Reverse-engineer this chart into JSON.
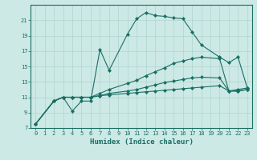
{
  "xlabel": "Humidex (Indice chaleur)",
  "bg_color": "#cce9e5",
  "line_color": "#1a6e64",
  "grid_color": "#aed4cf",
  "xlim": [
    -0.5,
    23.5
  ],
  "ylim": [
    7,
    23
  ],
  "xticks": [
    0,
    1,
    2,
    3,
    4,
    5,
    6,
    7,
    8,
    9,
    10,
    11,
    12,
    13,
    14,
    15,
    16,
    17,
    18,
    19,
    20,
    21,
    22,
    23
  ],
  "yticks": [
    7,
    9,
    11,
    13,
    15,
    17,
    19,
    21
  ],
  "series": [
    {
      "x": [
        0,
        2,
        3,
        4,
        5,
        6,
        7,
        8,
        10,
        11,
        12,
        13,
        14,
        15,
        16,
        17,
        18,
        20,
        21,
        22,
        23
      ],
      "y": [
        7.5,
        10.5,
        11.0,
        9.2,
        10.5,
        10.5,
        17.2,
        14.5,
        19.2,
        21.2,
        22.0,
        21.6,
        21.5,
        21.3,
        21.2,
        19.5,
        17.8,
        16.2,
        15.5,
        16.2,
        12.2
      ]
    },
    {
      "x": [
        0,
        2,
        3,
        4,
        5,
        6,
        7,
        8,
        10,
        11,
        12,
        13,
        14,
        15,
        16,
        17,
        18,
        20,
        21,
        22,
        23
      ],
      "y": [
        7.5,
        10.5,
        11.0,
        11.0,
        11.0,
        11.0,
        11.5,
        12.0,
        12.8,
        13.2,
        13.8,
        14.3,
        14.8,
        15.4,
        15.7,
        16.0,
        16.2,
        16.0,
        11.8,
        12.0,
        12.2
      ]
    },
    {
      "x": [
        0,
        2,
        3,
        4,
        5,
        6,
        7,
        8,
        10,
        11,
        12,
        13,
        14,
        15,
        16,
        17,
        18,
        20,
        21,
        22,
        23
      ],
      "y": [
        7.5,
        10.5,
        11.0,
        11.0,
        11.0,
        11.0,
        11.2,
        11.5,
        11.8,
        12.0,
        12.3,
        12.6,
        12.9,
        13.1,
        13.3,
        13.5,
        13.6,
        13.5,
        11.8,
        11.8,
        12.0
      ]
    },
    {
      "x": [
        0,
        2,
        3,
        4,
        5,
        6,
        7,
        8,
        10,
        11,
        12,
        13,
        14,
        15,
        16,
        17,
        18,
        20,
        21,
        22,
        23
      ],
      "y": [
        7.5,
        10.5,
        11.0,
        11.0,
        11.0,
        11.0,
        11.2,
        11.3,
        11.5,
        11.6,
        11.7,
        11.8,
        11.9,
        12.0,
        12.1,
        12.2,
        12.3,
        12.5,
        11.8,
        11.8,
        12.0
      ]
    }
  ]
}
